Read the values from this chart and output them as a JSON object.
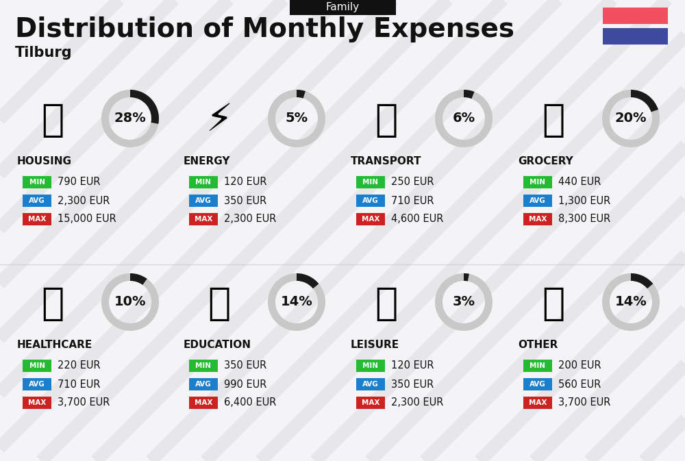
{
  "title": "Distribution of Monthly Expenses",
  "subtitle": "Tilburg",
  "tag": "Family",
  "bg_color": "#f4f4f6",
  "flag_red": "#f05060",
  "flag_blue": "#3d4a9e",
  "categories": [
    {
      "name": "HOUSING",
      "pct": 28,
      "min": "790 EUR",
      "avg": "2,300 EUR",
      "max": "15,000 EUR",
      "row": 0,
      "col": 0,
      "icon": "🏢"
    },
    {
      "name": "ENERGY",
      "pct": 5,
      "min": "120 EUR",
      "avg": "350 EUR",
      "max": "2,300 EUR",
      "row": 0,
      "col": 1,
      "icon": "⚡"
    },
    {
      "name": "TRANSPORT",
      "pct": 6,
      "min": "250 EUR",
      "avg": "710 EUR",
      "max": "4,600 EUR",
      "row": 0,
      "col": 2,
      "icon": "🚌"
    },
    {
      "name": "GROCERY",
      "pct": 20,
      "min": "440 EUR",
      "avg": "1,300 EUR",
      "max": "8,300 EUR",
      "row": 0,
      "col": 3,
      "icon": "🫙"
    },
    {
      "name": "HEALTHCARE",
      "pct": 10,
      "min": "220 EUR",
      "avg": "710 EUR",
      "max": "3,700 EUR",
      "row": 1,
      "col": 0,
      "icon": "🩺"
    },
    {
      "name": "EDUCATION",
      "pct": 14,
      "min": "350 EUR",
      "avg": "990 EUR",
      "max": "6,400 EUR",
      "row": 1,
      "col": 1,
      "icon": "🎓"
    },
    {
      "name": "LEISURE",
      "pct": 3,
      "min": "120 EUR",
      "avg": "350 EUR",
      "max": "2,300 EUR",
      "row": 1,
      "col": 2,
      "icon": "🛍"
    },
    {
      "name": "OTHER",
      "pct": 14,
      "min": "200 EUR",
      "avg": "560 EUR",
      "max": "3,700 EUR",
      "row": 1,
      "col": 3,
      "icon": "💛"
    }
  ],
  "min_color": "#22bb33",
  "avg_color": "#1a7fcc",
  "max_color": "#cc2222",
  "donut_dark": "#1a1a1a",
  "donut_gray": "#c8c8c8",
  "stripe_color": "#dcdce0",
  "stripe_alpha": 0.5,
  "tag_bg": "#111111",
  "divider_color": "#cccccc"
}
